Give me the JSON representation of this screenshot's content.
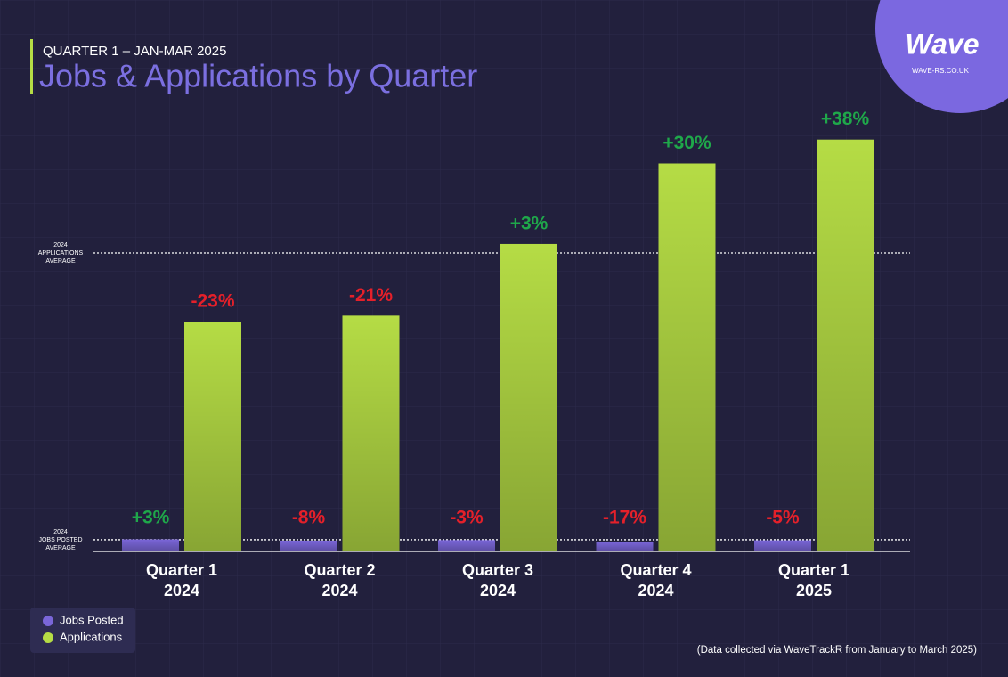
{
  "chart_data": {
    "type": "bar",
    "subtitle": "QUARTER 1 – JAN-MAR 2025",
    "title": "Jobs & Applications by Quarter",
    "brand": "Wave",
    "website": "WAVE-RS.CO.UK",
    "footnote": "(Data collected via WaveTrackR from January to March 2025)",
    "categories": [
      [
        "Quarter 1",
        "2024"
      ],
      [
        "Quarter 2",
        "2024"
      ],
      [
        "Quarter 3",
        "2024"
      ],
      [
        "Quarter 4",
        "2024"
      ],
      [
        "Quarter 1",
        "2025"
      ]
    ],
    "series": [
      {
        "name": "Jobs Posted",
        "color": "#7a66d8",
        "axis": "y2",
        "values": [
          3,
          -8,
          -3,
          -17,
          -5
        ],
        "value_labels": [
          "+3%",
          "-8%",
          "-3%",
          "-17%",
          "-5%"
        ]
      },
      {
        "name": "Applications",
        "color": "#b5dc45",
        "values": [
          -23,
          -21,
          3,
          30,
          38
        ],
        "value_labels": [
          "-23%",
          "-21%",
          "+3%",
          "+30%",
          "+38%"
        ]
      }
    ],
    "ylim": [
      -100,
      60
    ],
    "y2lim": [
      -100,
      4000
    ],
    "reference_lines": [
      {
        "label": [
          "2024",
          "APPLICATIONS",
          "AVERAGE"
        ],
        "value": 0
      },
      {
        "label": [
          "2024",
          "JOBS POSTED",
          "AVERAGE"
        ],
        "value": 0,
        "axis": "y2"
      }
    ],
    "positive_color": "#1fa84a",
    "negative_color": "#e5202a",
    "legend": "bottom-left"
  }
}
